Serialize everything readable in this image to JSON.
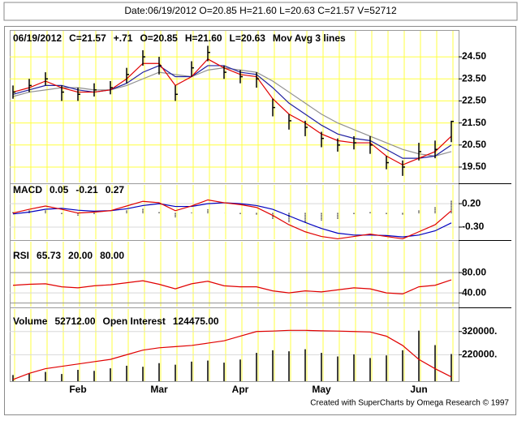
{
  "header": {
    "text": "Date:06/19/2012 O=20.85 H=21.60 L=20.63 C=21.57 V=52712"
  },
  "footer": "Created with SuperCharts by Omega Research © 1997",
  "chart_data": [
    {
      "type": "ohlc",
      "legend": [
        {
          "text": "06/19/2012",
          "color": "#000000"
        },
        {
          "text": "C=21.57",
          "color": "#000000"
        },
        {
          "text": "+.71",
          "color": "#00c000"
        },
        {
          "text": "O=20.85",
          "color": "#000000"
        },
        {
          "text": "H=21.60",
          "color": "#000000"
        },
        {
          "text": "L=20.63",
          "color": "#000000"
        },
        {
          "text": "Mov Avg 3 lines",
          "color": "#000000"
        }
      ],
      "bar_color": "#000000",
      "high": [
        23.2,
        23.5,
        23.8,
        23.2,
        23.1,
        23.3,
        23.4,
        24.0,
        24.8,
        24.5,
        23.2,
        24.3,
        25.0,
        24.1,
        23.9,
        23.8,
        22.6,
        21.9,
        21.6,
        21.1,
        20.8,
        20.9,
        20.9,
        20.0,
        19.8,
        20.6,
        20.7,
        21.6
      ],
      "low": [
        22.6,
        22.9,
        23.2,
        22.5,
        22.5,
        22.7,
        22.8,
        23.3,
        24.1,
        23.7,
        22.5,
        23.6,
        24.3,
        23.5,
        23.3,
        23.1,
        21.8,
        21.2,
        20.9,
        20.4,
        20.2,
        20.3,
        20.1,
        19.4,
        19.1,
        19.8,
        19.9,
        20.63
      ],
      "close": [
        22.9,
        23.2,
        23.5,
        22.9,
        22.8,
        23.0,
        23.1,
        23.7,
        24.5,
        24.1,
        22.8,
        24.0,
        24.7,
        23.8,
        23.6,
        23.5,
        22.2,
        21.6,
        21.3,
        20.8,
        20.5,
        20.6,
        20.5,
        19.7,
        19.5,
        20.2,
        20.3,
        21.57
      ],
      "series": [
        {
          "color": "#909090",
          "values": [
            22.7,
            22.9,
            23.0,
            23.1,
            23.1,
            23.0,
            23.0,
            23.2,
            23.5,
            23.8,
            23.7,
            23.6,
            23.9,
            24.0,
            23.9,
            23.8,
            23.4,
            22.9,
            22.4,
            21.9,
            21.5,
            21.2,
            20.9,
            20.6,
            20.3,
            20.1,
            20.0,
            20.2
          ]
        },
        {
          "color": "#2020a0",
          "values": [
            22.8,
            23.0,
            23.2,
            23.2,
            23.0,
            22.9,
            23.0,
            23.3,
            23.8,
            24.1,
            23.6,
            23.6,
            24.1,
            24.1,
            23.8,
            23.7,
            23.1,
            22.4,
            21.9,
            21.4,
            21.0,
            20.8,
            20.7,
            20.3,
            19.9,
            19.9,
            20.0,
            20.5
          ]
        },
        {
          "color": "#e00000",
          "values": [
            22.9,
            23.1,
            23.4,
            23.1,
            22.9,
            22.9,
            23.0,
            23.5,
            24.2,
            24.2,
            23.2,
            23.6,
            24.4,
            24.0,
            23.7,
            23.6,
            22.6,
            21.9,
            21.5,
            21.0,
            20.7,
            20.6,
            20.6,
            20.0,
            19.6,
            19.9,
            20.2,
            20.9
          ]
        }
      ],
      "ylim": [
        18.8,
        25.68
      ],
      "yticks": [
        {
          "value": 24.5,
          "label": "24.50"
        },
        {
          "value": 23.5,
          "label": "23.50"
        },
        {
          "value": 22.5,
          "label": "22.50"
        },
        {
          "value": 21.5,
          "label": "21.50"
        },
        {
          "value": 20.5,
          "label": "20.50"
        },
        {
          "value": 19.5,
          "label": "19.50"
        }
      ],
      "grid": true
    },
    {
      "type": "macd",
      "legend": [
        {
          "text": "MACD",
          "color": "#000000"
        },
        {
          "text": "0.05",
          "color": "#e00000"
        },
        {
          "text": "-0.21",
          "color": "#0000c0"
        },
        {
          "text": "0.27",
          "color": "#000000"
        }
      ],
      "series": [
        {
          "color": "#0000c0",
          "values": [
            -0.02,
            0.02,
            0.08,
            0.1,
            0.06,
            0.04,
            0.05,
            0.09,
            0.16,
            0.2,
            0.14,
            0.14,
            0.2,
            0.22,
            0.2,
            0.16,
            0.08,
            -0.06,
            -0.2,
            -0.33,
            -0.43,
            -0.47,
            -0.47,
            -0.48,
            -0.51,
            -0.47,
            -0.38,
            -0.21
          ]
        },
        {
          "color": "#e00000",
          "values": [
            0.0,
            0.08,
            0.15,
            0.08,
            0.0,
            0.02,
            0.05,
            0.15,
            0.25,
            0.22,
            0.05,
            0.15,
            0.28,
            0.22,
            0.18,
            0.12,
            -0.05,
            -0.25,
            -0.4,
            -0.5,
            -0.55,
            -0.5,
            -0.45,
            -0.5,
            -0.55,
            -0.4,
            -0.25,
            0.05
          ]
        }
      ],
      "histogram": {
        "color": "#000000",
        "values": [
          0.02,
          0.06,
          0.07,
          -0.02,
          -0.06,
          -0.02,
          0.0,
          0.06,
          0.09,
          0.02,
          -0.09,
          0.01,
          0.08,
          0.0,
          -0.02,
          -0.04,
          -0.13,
          -0.19,
          -0.2,
          -0.17,
          -0.12,
          -0.03,
          0.02,
          -0.02,
          -0.04,
          0.07,
          0.13,
          0.27
        ]
      },
      "ylim": [
        -0.56,
        0.6
      ],
      "yticks": [
        {
          "value": 0.2,
          "label": "0.20"
        },
        {
          "value": -0.3,
          "label": "-0.30"
        }
      ]
    },
    {
      "type": "rsi",
      "legend": [
        {
          "text": "RSI",
          "color": "#000000"
        },
        {
          "text": "65.73",
          "color": "#e00000"
        }
      ],
      "levels": [
        {
          "value": 20,
          "label": "20.00",
          "color": "#000000"
        },
        {
          "value": 80,
          "label": "80.00",
          "color": "#909090"
        }
      ],
      "series": [
        {
          "color": "#e00000",
          "values": [
            55,
            57,
            58,
            52,
            50,
            54,
            56,
            60,
            64,
            57,
            48,
            58,
            63,
            54,
            52,
            52,
            44,
            40,
            44,
            42,
            46,
            50,
            48,
            40,
            38,
            52,
            55,
            65.73
          ]
        }
      ],
      "ylim": [
        13,
        141
      ],
      "yticks": [
        {
          "value": 80,
          "label": "80.00"
        },
        {
          "value": 40,
          "label": "40.00"
        }
      ]
    },
    {
      "type": "volume",
      "legend": [
        {
          "text": "Volume",
          "color": "#000000"
        },
        {
          "text": "52712.00",
          "color": "#000000"
        },
        {
          "text": "Open Interest",
          "color": "#000000"
        },
        {
          "text": "124475.00",
          "color": "#e00000"
        }
      ],
      "categories": [
        null,
        null,
        null,
        null,
        "Feb",
        null,
        null,
        null,
        null,
        "Mar",
        null,
        null,
        null,
        null,
        "Apr",
        null,
        null,
        null,
        null,
        "May",
        null,
        null,
        null,
        null,
        null,
        "Jun",
        null,
        null
      ],
      "series": [
        {
          "color": "#000000",
          "axis": "y2",
          "values": [
            12000,
            15000,
            18000,
            14000,
            22000,
            20000,
            25000,
            30000,
            28000,
            35000,
            32000,
            38000,
            40000,
            36000,
            42000,
            55000,
            60000,
            58000,
            62000,
            55000,
            48000,
            52000,
            45000,
            50000,
            60000,
            98000,
            70000,
            52712
          ]
        },
        {
          "color": "#e00000",
          "values": [
            113000,
            140000,
            160000,
            170000,
            180000,
            190000,
            200000,
            220000,
            240000,
            250000,
            255000,
            260000,
            270000,
            280000,
            300000,
            320000,
            322000,
            325000,
            325000,
            323000,
            322000,
            320000,
            318000,
            300000,
            260000,
            200000,
            160000,
            124475
          ]
        }
      ],
      "ylim": [
        106000,
        417000
      ],
      "yticks": [
        {
          "value": 320000,
          "label": "320000."
        },
        {
          "value": 220000,
          "label": "220000."
        }
      ],
      "y2lim": [
        0,
        140000
      ]
    }
  ]
}
